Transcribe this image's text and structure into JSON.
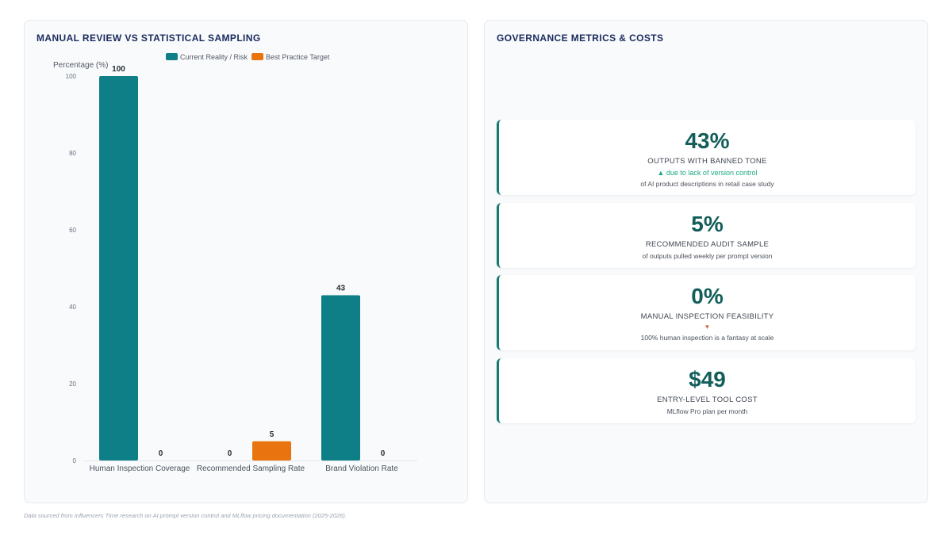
{
  "left_panel": {
    "title": "MANUAL REVIEW VS STATISTICAL SAMPLING"
  },
  "right_panel": {
    "title": "GOVERNANCE METRICS & COSTS"
  },
  "chart_data": {
    "type": "bar",
    "ylabel": "Percentage (%)",
    "xlabel": "",
    "ylim": [
      0,
      100
    ],
    "yticks": [
      0,
      20,
      40,
      60,
      80,
      100
    ],
    "grid": false,
    "legend_position": "top-center",
    "categories": [
      "Human Inspection Coverage",
      "Recommended Sampling Rate",
      "Brand Violation Rate"
    ],
    "series": [
      {
        "name": "Current Reality / Risk",
        "color": "#0e7f86",
        "values": [
          100,
          0,
          43
        ]
      },
      {
        "name": "Best Practice Target",
        "color": "#e8730f",
        "values": [
          0,
          5,
          0
        ]
      }
    ]
  },
  "metrics": [
    {
      "value": "43%",
      "label": "OUTPUTS WITH BANNED TONE",
      "trend": "▲ due to lack of version control",
      "trend_dir": "up",
      "desc": "of AI product descriptions in retail case study"
    },
    {
      "value": "5%",
      "label": "RECOMMENDED AUDIT SAMPLE",
      "trend": "",
      "trend_dir": "",
      "desc": "of outputs pulled weekly per prompt version"
    },
    {
      "value": "0%",
      "label": "MANUAL INSPECTION FEASIBILITY",
      "trend": "▼",
      "trend_dir": "down",
      "desc": "100% human inspection is a fantasy at scale"
    },
    {
      "value": "$49",
      "label": "ENTRY-LEVEL TOOL COST",
      "trend": "",
      "trend_dir": "",
      "desc": "MLflow Pro plan per month"
    }
  ],
  "footnote": "Data sourced from Influencers Time research on AI prompt version control and MLflow pricing documentation (2025-2026)."
}
